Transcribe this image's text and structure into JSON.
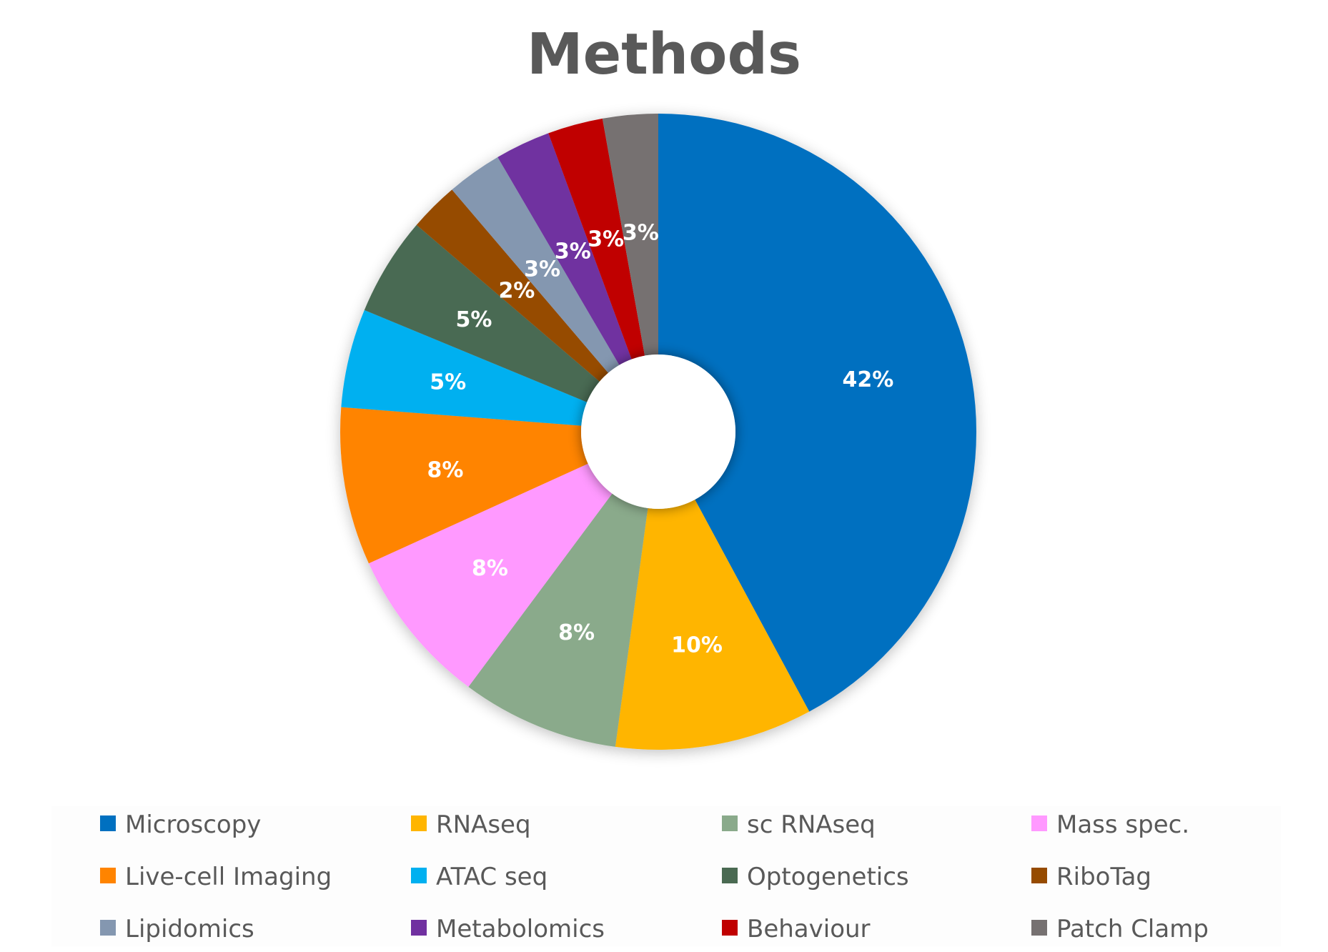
{
  "chart_data": {
    "type": "pie",
    "donut": true,
    "title": "Methods",
    "legend_position": "bottom",
    "slices": [
      {
        "label": "Microscopy",
        "value": 42,
        "display": "42%",
        "color": "#0070C0"
      },
      {
        "label": "RNAseq",
        "value": 10,
        "display": "10%",
        "color": "#FFB500"
      },
      {
        "label": "sc RNAseq",
        "value": 8,
        "display": "8%",
        "color": "#8AAA8B"
      },
      {
        "label": "Mass spec.",
        "value": 8,
        "display": "8%",
        "color": "#FF99FF"
      },
      {
        "label": "Live-cell Imaging",
        "value": 8,
        "display": "8%",
        "color": "#FF8400"
      },
      {
        "label": "ATAC seq",
        "value": 5,
        "display": "5%",
        "color": "#00B0F0"
      },
      {
        "label": "Optogenetics",
        "value": 5,
        "display": "5%",
        "color": "#4A6A52"
      },
      {
        "label": "RiboTag",
        "value": 2.5,
        "display": "2%",
        "color": "#964B00"
      },
      {
        "label": "Lipidomics",
        "value": 2.8,
        "display": "3%",
        "color": "#8497B0"
      },
      {
        "label": "Metabolomics",
        "value": 2.8,
        "display": "3%",
        "color": "#7030A0"
      },
      {
        "label": "Behaviour",
        "value": 2.8,
        "display": "3%",
        "color": "#C00000"
      },
      {
        "label": "Patch Clamp",
        "value": 2.8,
        "display": "3%",
        "color": "#767171"
      }
    ]
  }
}
